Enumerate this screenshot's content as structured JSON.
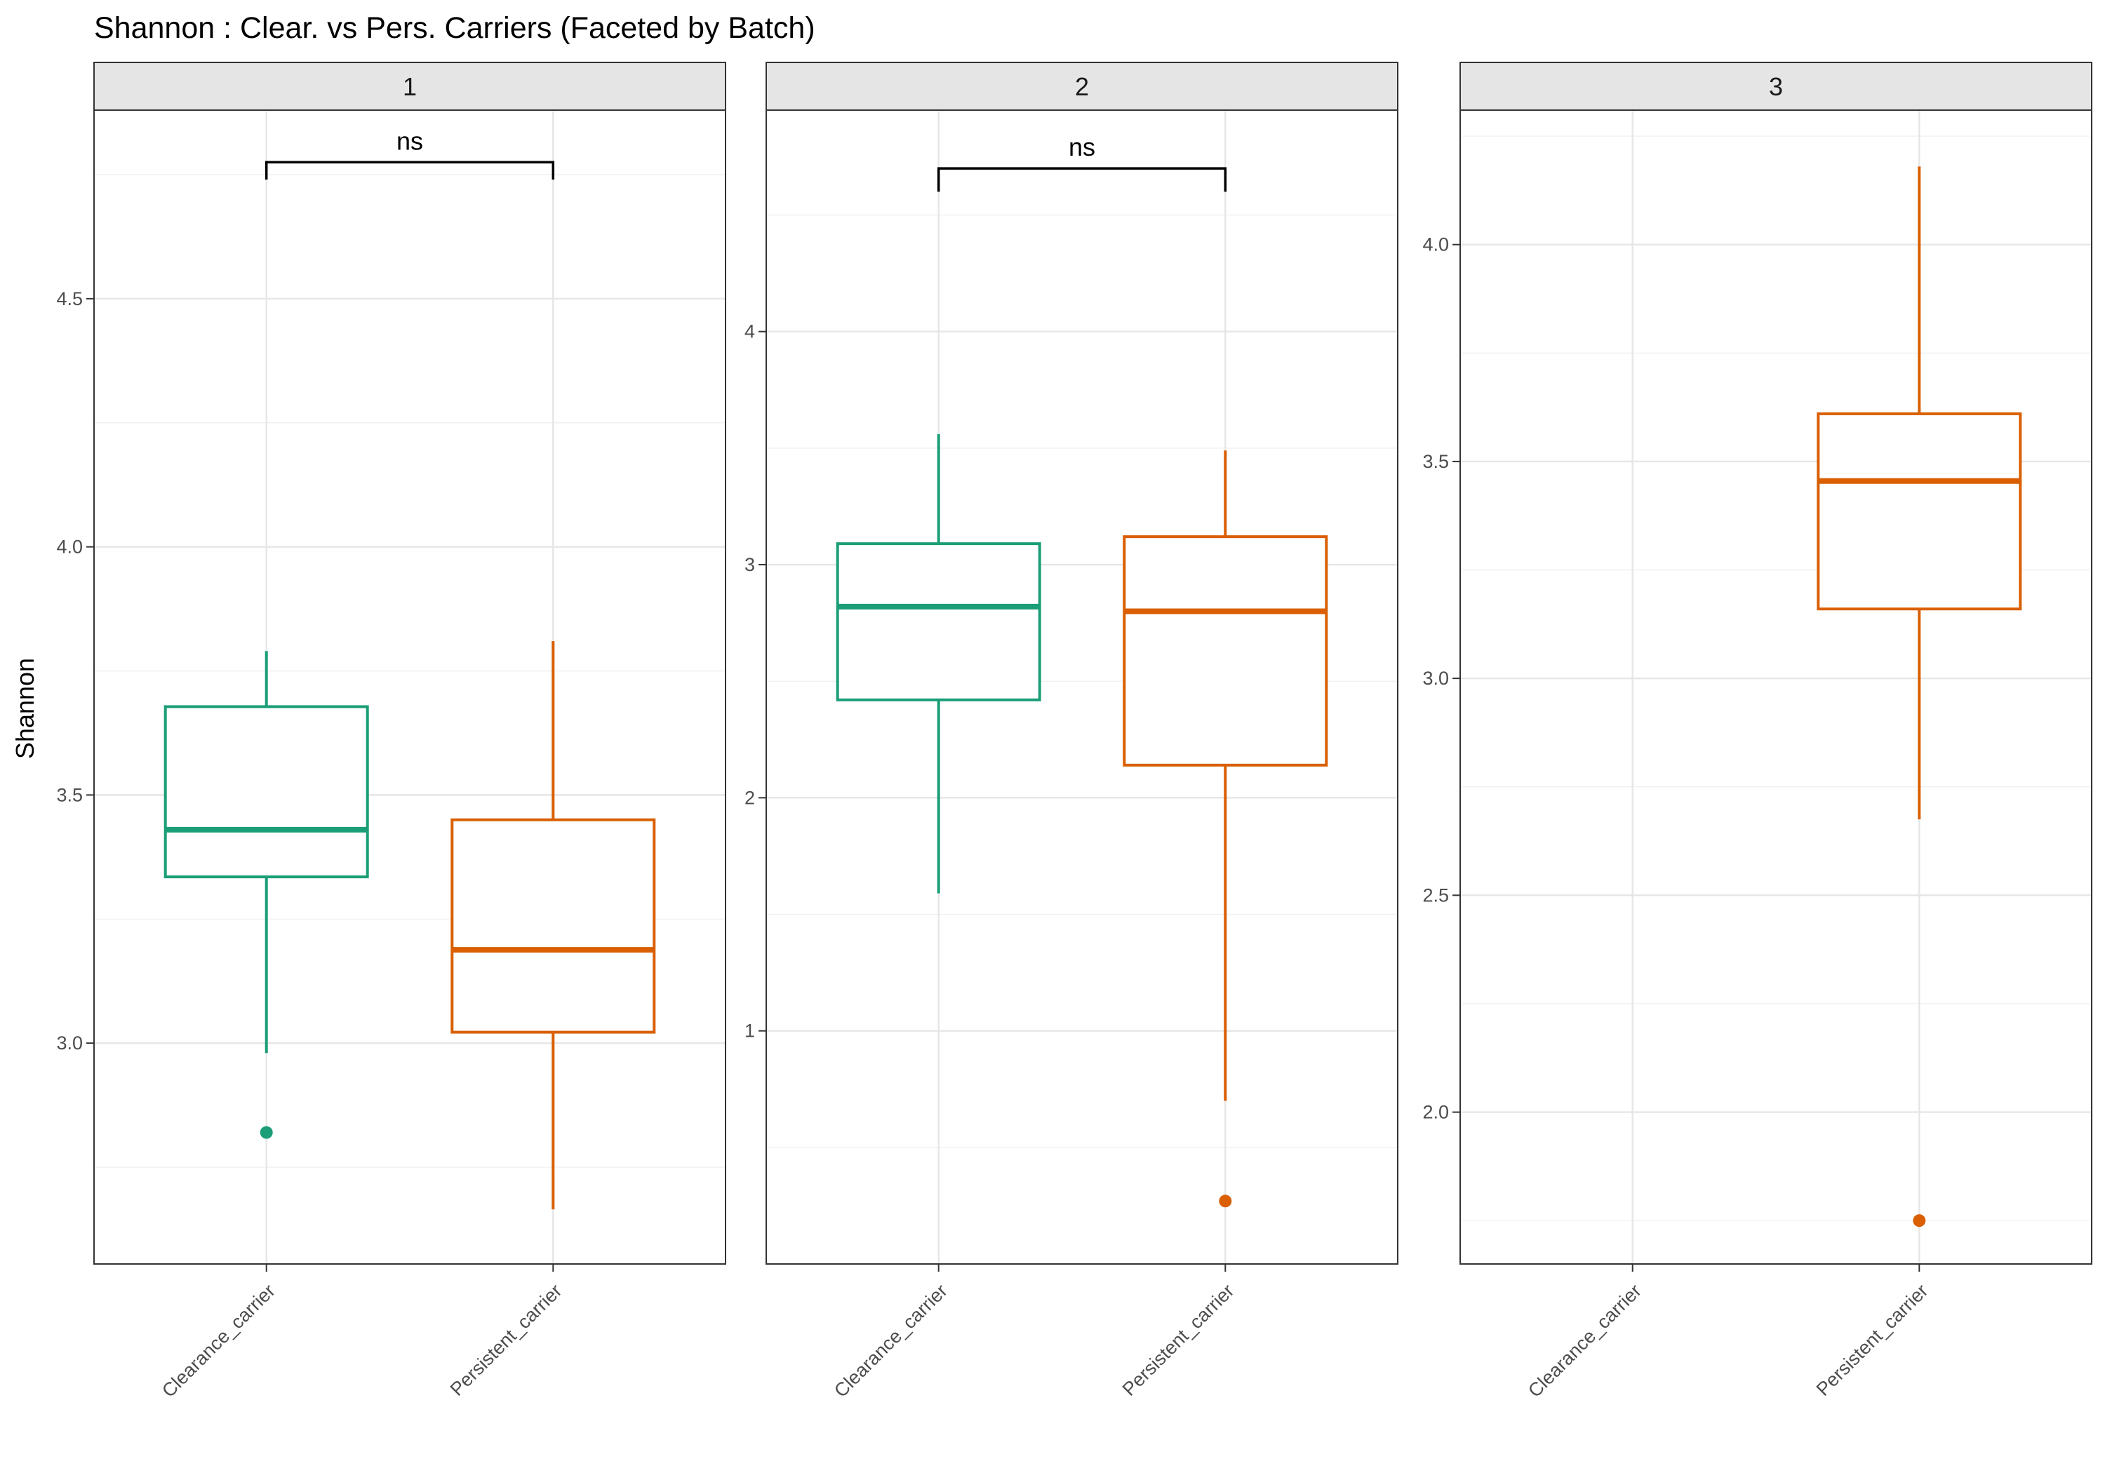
{
  "chart_data": {
    "type": "box",
    "title": "Shannon : Clear. vs Pers. Carriers (Faceted by Batch)",
    "ylabel": "Shannon",
    "xlabel": "",
    "facet_variable": "Batch",
    "categories": [
      "Clearance_carrier",
      "Persistent_carrier"
    ],
    "colors": {
      "Clearance_carrier": "#1b9e77",
      "Persistent_carrier": "#d95f02"
    },
    "facets": [
      {
        "label": "1",
        "ylim": [
          2.555,
          4.88
        ],
        "yticks": [
          3.0,
          3.5,
          4.0,
          4.5
        ],
        "ytick_labels": [
          "3.0",
          "3.5",
          "4.0",
          "4.5"
        ],
        "comparison": {
          "label": "ns",
          "y": 4.775,
          "drop": 0.035
        },
        "boxes": [
          {
            "category": "Clearance_carrier",
            "whisker_low": 2.98,
            "q1": 3.335,
            "median": 3.43,
            "q3": 3.678,
            "whisker_high": 3.79,
            "outliers": [
              2.82
            ]
          },
          {
            "category": "Persistent_carrier",
            "whisker_low": 2.665,
            "q1": 3.022,
            "median": 3.188,
            "q3": 3.45,
            "whisker_high": 3.81,
            "outliers": []
          }
        ]
      },
      {
        "label": "2",
        "ylim": [
          0.0,
          4.95
        ],
        "yticks": [
          1,
          2,
          3,
          4
        ],
        "ytick_labels": [
          "1",
          "2",
          "3",
          "4"
        ],
        "comparison": {
          "label": "ns",
          "y": 4.7,
          "drop": 0.1
        },
        "boxes": [
          {
            "category": "Clearance_carrier",
            "whisker_low": 1.59,
            "q1": 2.42,
            "median": 2.82,
            "q3": 3.09,
            "whisker_high": 3.56,
            "outliers": []
          },
          {
            "category": "Persistent_carrier",
            "whisker_low": 0.7,
            "q1": 2.14,
            "median": 2.8,
            "q3": 3.12,
            "whisker_high": 3.49,
            "outliers": [
              0.27
            ]
          }
        ]
      },
      {
        "label": "3",
        "ylim": [
          1.65,
          4.31
        ],
        "yticks": [
          2.0,
          2.5,
          3.0,
          3.5,
          4.0
        ],
        "ytick_labels": [
          "2.0",
          "2.5",
          "3.0",
          "3.5",
          "4.0"
        ],
        "comparison": null,
        "boxes": [
          {
            "category": "Persistent_carrier",
            "whisker_low": 2.675,
            "q1": 3.16,
            "median": 3.455,
            "q3": 3.61,
            "whisker_high": 4.18,
            "outliers": [
              1.75
            ]
          }
        ]
      }
    ],
    "grid": true,
    "legend": "none"
  }
}
